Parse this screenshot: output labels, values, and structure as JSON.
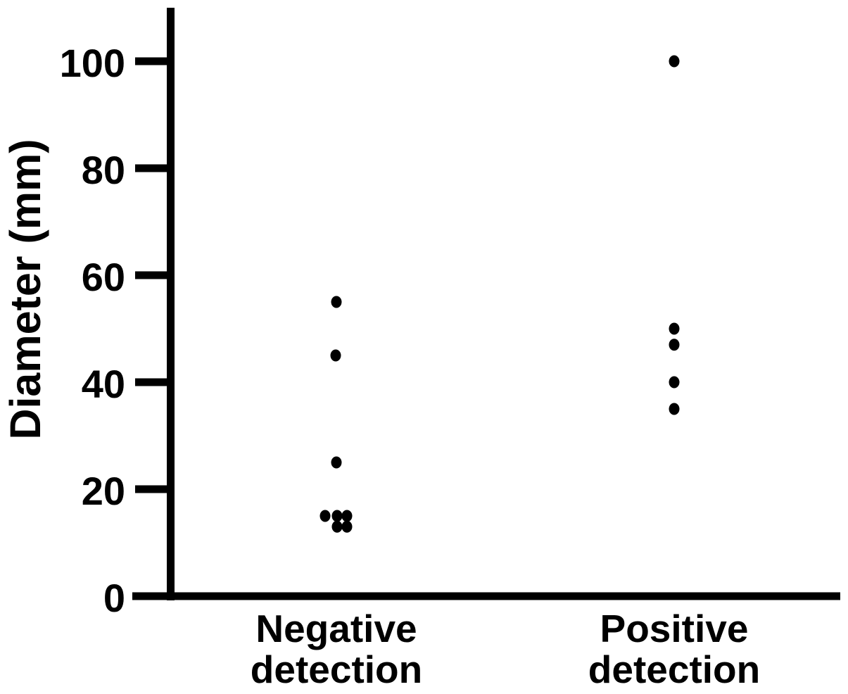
{
  "figure": {
    "background": "#ffffff",
    "ink_color": "#000000"
  },
  "chart_data": {
    "type": "scatter",
    "subtype": "categorical-dot-plot",
    "title": "",
    "xlabel": "",
    "ylabel": "Diameter (mm)",
    "categories": [
      "Negative detection",
      "Positive detection"
    ],
    "yticks": [
      0,
      20,
      40,
      60,
      80,
      100
    ],
    "ylim": [
      0,
      109
    ],
    "grid": false,
    "legend": "none",
    "marker": {
      "shape": "filled-circle",
      "color": "#000000"
    },
    "series": [
      {
        "name": "Negative detection",
        "values": [
          55,
          45,
          25,
          15,
          15,
          15,
          13,
          13
        ],
        "points": [
          {
            "y": 55,
            "dx": 0
          },
          {
            "y": 45,
            "dx": -1
          },
          {
            "y": 25,
            "dx": 0
          },
          {
            "y": 15,
            "dx": -16
          },
          {
            "y": 15,
            "dx": 1
          },
          {
            "y": 15,
            "dx": 15
          },
          {
            "y": 13,
            "dx": 1
          },
          {
            "y": 13,
            "dx": 15
          }
        ]
      },
      {
        "name": "Positive detection",
        "values": [
          100,
          50,
          47,
          40,
          35
        ],
        "points": [
          {
            "y": 100,
            "dx": 0
          },
          {
            "y": 50,
            "dx": 0
          },
          {
            "y": 47,
            "dx": 0
          },
          {
            "y": 40,
            "dx": 0
          },
          {
            "y": 35,
            "dx": 0
          }
        ]
      }
    ]
  }
}
